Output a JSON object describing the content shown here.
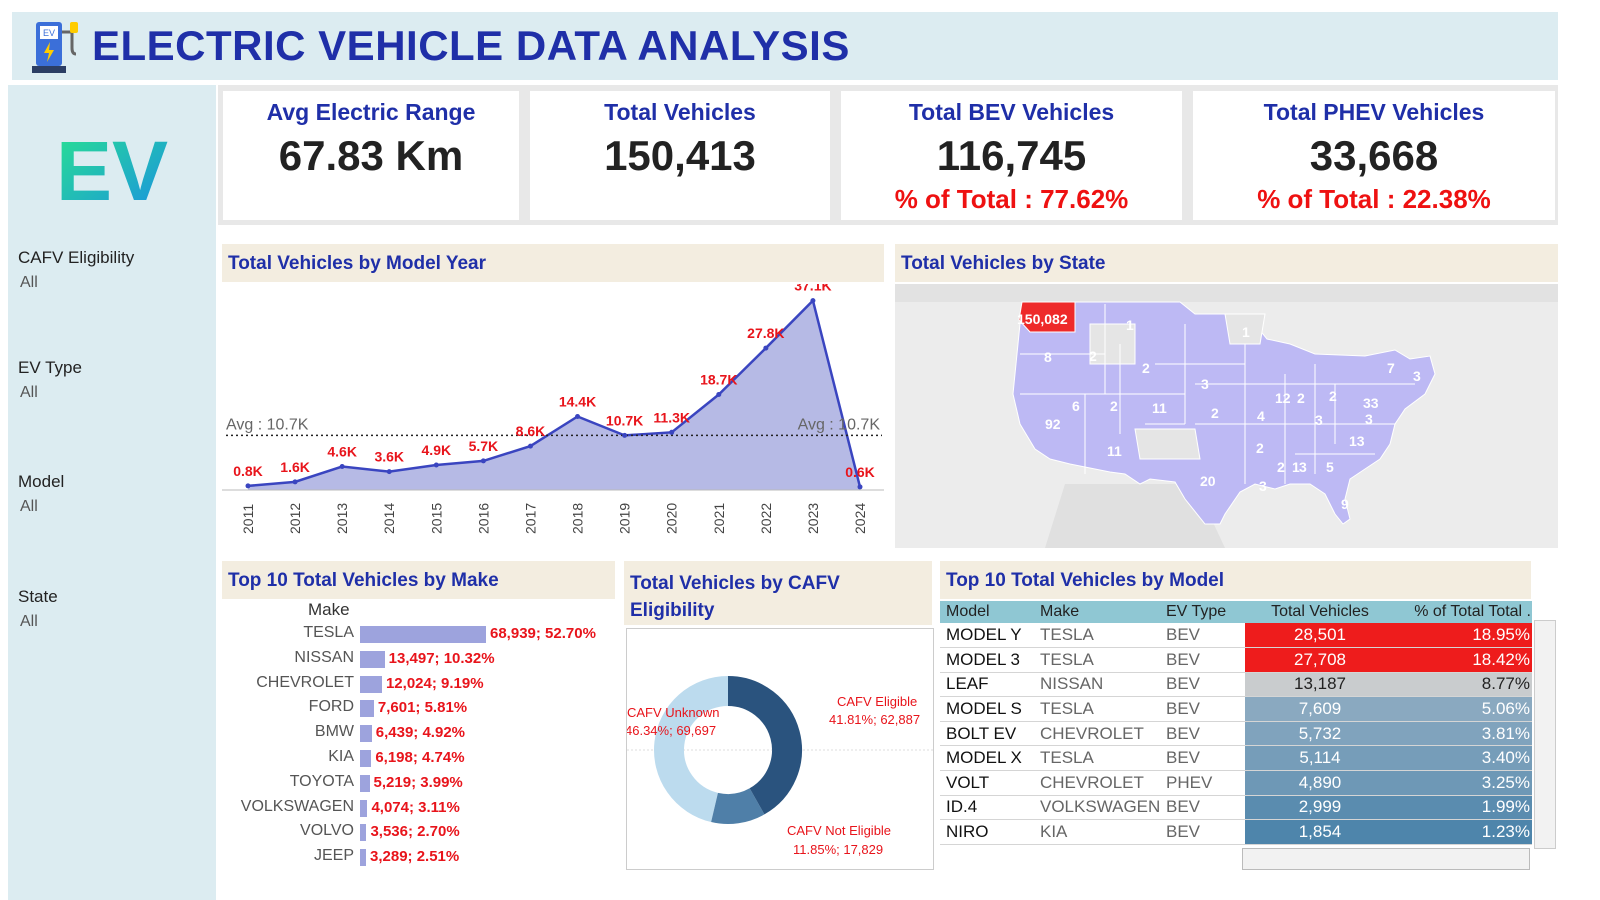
{
  "header": {
    "title": "ELECTRIC VEHICLE DATA ANALYSIS",
    "badge_text": "EV",
    "logo_text": "EV"
  },
  "filters": [
    {
      "label": "CAFV Eligibility",
      "value": "All"
    },
    {
      "label": "EV Type",
      "value": "All"
    },
    {
      "label": "Model",
      "value": "All"
    },
    {
      "label": "State",
      "value": "All"
    }
  ],
  "kpis": {
    "avg_range": {
      "title": "Avg Electric Range",
      "value": "67.83 Km"
    },
    "total": {
      "title": "Total Vehicles",
      "value": "150,413"
    },
    "bev": {
      "title": "Total BEV Vehicles",
      "value": "116,745",
      "pct": "% of Total : 77.62%"
    },
    "phev": {
      "title": "Total PHEV Vehicles",
      "value": "33,668",
      "pct": "% of Total : 22.38%"
    }
  },
  "panels": {
    "model_year": "Total Vehicles by Model Year",
    "state": "Total Vehicles by State",
    "make": "Top 10 Total Vehicles by Make",
    "cafv": "Total Vehicles by CAFV Eligibility",
    "model": "Top 10 Total Vehicles by Model"
  },
  "chart_data": [
    {
      "type": "area",
      "x": [
        "2011",
        "2012",
        "2013",
        "2014",
        "2015",
        "2016",
        "2017",
        "2018",
        "2019",
        "2020",
        "2021",
        "2022",
        "2023",
        "2024"
      ],
      "values": [
        0.8,
        1.6,
        4.6,
        3.6,
        4.9,
        5.7,
        8.6,
        14.4,
        10.7,
        11.3,
        18.7,
        27.8,
        37.1,
        0.6
      ],
      "labels": [
        "0.8K",
        "1.6K",
        "4.6K",
        "3.6K",
        "4.9K",
        "5.7K",
        "8.6K",
        "14.4K",
        "10.7K",
        "11.3K",
        "18.7K",
        "27.8K",
        "37.1K",
        "0.6K"
      ],
      "avg_value": 10.7,
      "avg_label": "Avg : 10.7K",
      "ylim": [
        0,
        38
      ],
      "colors": {
        "fill": "#aeb2e2",
        "line": "#3a45c0"
      }
    },
    {
      "type": "bar",
      "axis_header": "Make",
      "categories": [
        "TESLA",
        "NISSAN",
        "CHEVROLET",
        "FORD",
        "BMW",
        "KIA",
        "TOYOTA",
        "VOLKSWAGEN",
        "VOLVO",
        "JEEP"
      ],
      "values": [
        68939,
        13497,
        12024,
        7601,
        6439,
        6198,
        5219,
        4074,
        3536,
        3289
      ],
      "labels": [
        "68,939; 52.70%",
        "13,497; 10.32%",
        "12,024; 9.19%",
        "7,601; 5.81%",
        "6,439; 4.92%",
        "6,198; 4.74%",
        "5,219; 3.99%",
        "4,074; 3.11%",
        "3,536; 2.70%",
        "3,289; 2.51%"
      ],
      "colors": {
        "bar": "#9da3dd"
      }
    },
    {
      "type": "pie",
      "categories": [
        "CAFV Eligible",
        "CAFV Not Eligible",
        "CAFV Unknown"
      ],
      "values": [
        62887,
        17829,
        69697
      ],
      "percents": [
        41.81,
        11.85,
        46.34
      ],
      "labels": [
        {
          "name": "CAFV Eligible",
          "detail": "41.81%; 62,887"
        },
        {
          "name": "CAFV Not Eligible",
          "detail": "11.85%; 17,829"
        },
        {
          "name": "CAFV Unknown",
          "detail": "46.34%; 69,697"
        }
      ],
      "colors": [
        "#2a537e",
        "#4f7fa8",
        "#bcdbee"
      ]
    },
    {
      "type": "table",
      "columns": [
        "Model",
        "Make",
        "EV Type",
        "Total Vehicles",
        "% of Total Total ."
      ],
      "rows": [
        [
          "MODEL Y",
          "TESLA",
          "BEV",
          "28,501",
          "18.95%"
        ],
        [
          "MODEL 3",
          "TESLA",
          "BEV",
          "27,708",
          "18.42%"
        ],
        [
          "LEAF",
          "NISSAN",
          "BEV",
          "13,187",
          "8.77%"
        ],
        [
          "MODEL S",
          "TESLA",
          "BEV",
          "7,609",
          "5.06%"
        ],
        [
          "BOLT EV",
          "CHEVROLET",
          "BEV",
          "5,732",
          "3.81%"
        ],
        [
          "MODEL X",
          "TESLA",
          "BEV",
          "5,114",
          "3.40%"
        ],
        [
          "VOLT",
          "CHEVROLET",
          "PHEV",
          "4,890",
          "3.25%"
        ],
        [
          "ID.4",
          "VOLKSWAGEN",
          "BEV",
          "2,999",
          "1.99%"
        ],
        [
          "NIRO",
          "KIA",
          "BEV",
          "1,854",
          "1.23%"
        ]
      ],
      "row_colors": [
        "#ee1c1c",
        "#ee1c1c",
        "#c9ccce",
        "#8aa9c0",
        "#80a3bd",
        "#769db9",
        "#6e98b6",
        "#5a8caf",
        "#4e85ab"
      ]
    }
  ],
  "map": {
    "highlight_color": "#ee2a2a",
    "state_color": "#bdb9f4",
    "labels": [
      {
        "state": "WA",
        "text": "150,082"
      },
      {
        "state": "MT",
        "text": "1"
      },
      {
        "state": "MN",
        "text": "1"
      },
      {
        "state": "OR",
        "text": "8"
      },
      {
        "state": "ID",
        "text": "2"
      },
      {
        "state": "SD",
        "text": "2"
      },
      {
        "state": "NE",
        "text": "3"
      },
      {
        "state": "NY",
        "text": "7"
      },
      {
        "state": "MA",
        "text": "3"
      },
      {
        "state": "NV",
        "text": "6"
      },
      {
        "state": "UT",
        "text": "2"
      },
      {
        "state": "CO",
        "text": "11"
      },
      {
        "state": "KS",
        "text": "2"
      },
      {
        "state": "IL",
        "text": "12"
      },
      {
        "state": "IN",
        "text": "2"
      },
      {
        "state": "OH",
        "text": "2"
      },
      {
        "state": "PA",
        "text": "33"
      },
      {
        "state": "MO",
        "text": "4"
      },
      {
        "state": "KY",
        "text": "3"
      },
      {
        "state": "CA",
        "text": "92"
      },
      {
        "state": "VA",
        "text": "3"
      },
      {
        "state": "NC",
        "text": "13"
      },
      {
        "state": "AZ",
        "text": "11"
      },
      {
        "state": "OK",
        "text": "2"
      },
      {
        "state": "AR",
        "text": "2"
      },
      {
        "state": "MS",
        "text": "1"
      },
      {
        "state": "AL",
        "text": "3"
      },
      {
        "state": "GA",
        "text": "5"
      },
      {
        "state": "TX",
        "text": "20"
      },
      {
        "state": "LA",
        "text": "3"
      },
      {
        "state": "FL",
        "text": "9"
      }
    ]
  }
}
